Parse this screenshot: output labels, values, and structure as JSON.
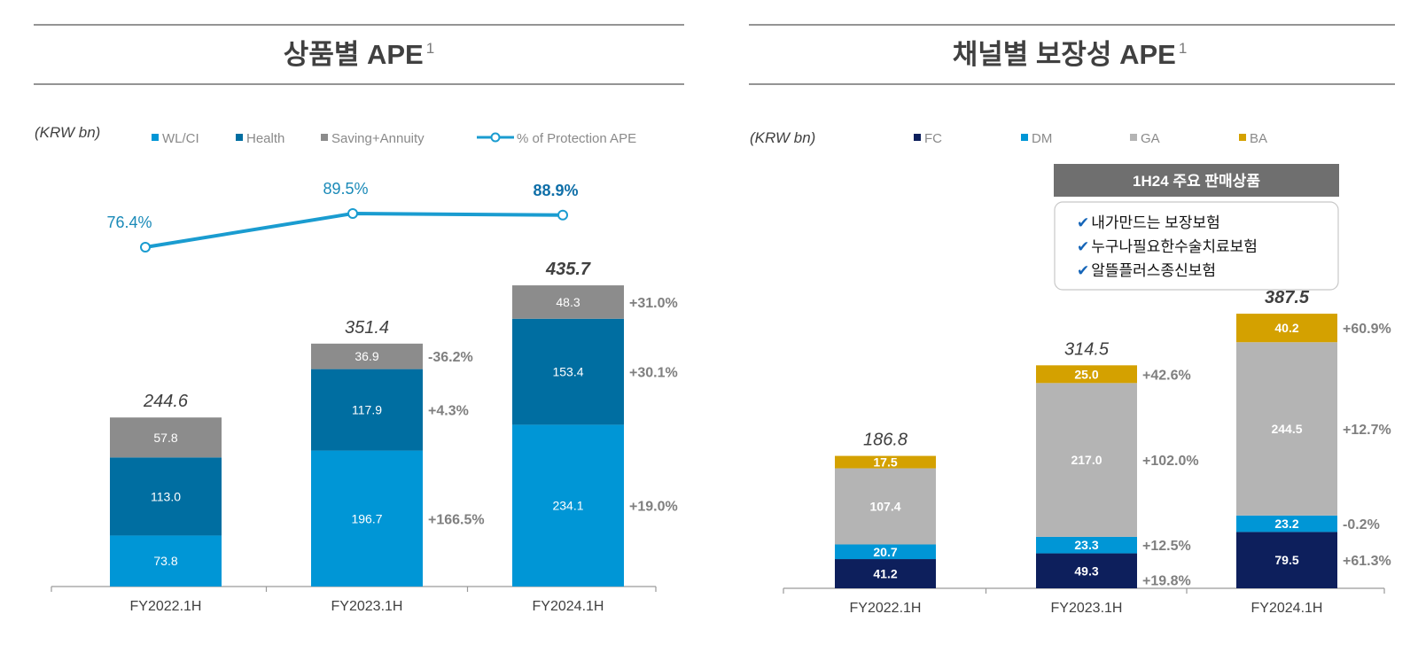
{
  "left_panel": {
    "title": "상품별 APE",
    "title_sup": "1",
    "unit": "(KRW bn)",
    "legend": [
      {
        "label": "WL/CI",
        "color": "#0096d6",
        "kind": "square"
      },
      {
        "label": "Health",
        "color": "#006ea1",
        "kind": "square"
      },
      {
        "label": "Saving+Annuity",
        "color": "#8c8c8c",
        "kind": "square"
      },
      {
        "label": "% of Protection APE",
        "color": "#1a9cd0",
        "kind": "line"
      }
    ]
  },
  "right_panel": {
    "title": "채널별 보장성 APE",
    "title_sup": "1",
    "unit": "(KRW bn)",
    "legend": [
      {
        "label": "FC",
        "color": "#0d1f5c",
        "kind": "square"
      },
      {
        "label": "DM",
        "color": "#0096d6",
        "kind": "square"
      },
      {
        "label": "GA",
        "color": "#b4b4b4",
        "kind": "square"
      },
      {
        "label": "BA",
        "color": "#d4a100",
        "kind": "square"
      }
    ],
    "info_box": {
      "header": "1H24 주요 판매상품",
      "check": "✔",
      "items": [
        "내가만드는 보장보험",
        "누구나필요한수술치료보험",
        "알뜰플러스종신보험"
      ]
    }
  },
  "chart_data": [
    {
      "type": "bar",
      "stacked": true,
      "title": "상품별 APE",
      "unit": "(KRW bn)",
      "categories": [
        "FY2022.1H",
        "FY2023.1H",
        "FY2024.1H"
      ],
      "series": [
        {
          "name": "WL/CI",
          "color": "#0096d6",
          "values": [
            73.8,
            196.7,
            234.1
          ],
          "growth": [
            "",
            "+166.5%",
            "+19.0%"
          ]
        },
        {
          "name": "Health",
          "color": "#006ea1",
          "values": [
            113.0,
            117.9,
            153.4
          ],
          "growth": [
            "",
            "+4.3%",
            "+30.1%"
          ]
        },
        {
          "name": "Saving+Annuity",
          "color": "#8c8c8c",
          "values": [
            57.8,
            36.9,
            48.3
          ],
          "growth": [
            "",
            "-36.2%",
            "+31.0%"
          ]
        }
      ],
      "totals": [
        244.6,
        351.4,
        435.7
      ],
      "line_series": {
        "name": "% of Protection APE",
        "values": [
          76.4,
          89.5,
          88.9
        ],
        "labels": [
          "76.4%",
          "89.5%",
          "88.9%"
        ]
      },
      "ylim": [
        0,
        480
      ]
    },
    {
      "type": "bar",
      "stacked": true,
      "title": "채널별 보장성 APE",
      "unit": "(KRW bn)",
      "categories": [
        "FY2022.1H",
        "FY2023.1H",
        "FY2024.1H"
      ],
      "series": [
        {
          "name": "FC",
          "color": "#0d1f5c",
          "values": [
            41.2,
            49.3,
            79.5
          ],
          "growth": [
            "",
            "+19.8%",
            "+61.3%"
          ]
        },
        {
          "name": "DM",
          "color": "#0096d6",
          "values": [
            20.7,
            23.3,
            23.2
          ],
          "growth": [
            "",
            "+12.5%",
            "-0.2%"
          ]
        },
        {
          "name": "GA",
          "color": "#b4b4b4",
          "values": [
            107.4,
            217.0,
            244.5
          ],
          "growth": [
            "",
            "+102.0%",
            "+12.7%"
          ]
        },
        {
          "name": "BA",
          "color": "#d4a100",
          "values": [
            17.5,
            25.0,
            40.2
          ],
          "growth": [
            "",
            "+42.6%",
            "+60.9%"
          ]
        }
      ],
      "totals": [
        186.8,
        314.5,
        387.5
      ],
      "ylim": [
        0,
        440
      ]
    }
  ]
}
